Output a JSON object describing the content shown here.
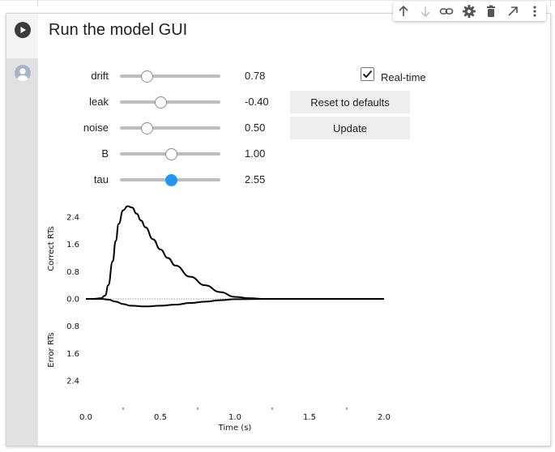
{
  "cell": {
    "title": "Run the model GUI",
    "run_icon": "play-icon",
    "output_icon": "user-avatar-icon"
  },
  "toolbar": {
    "icons": [
      "arrow-up-icon",
      "arrow-down-icon",
      "link-icon",
      "gear-icon",
      "trash-icon",
      "open-external-icon",
      "more-vert-icon"
    ]
  },
  "sliders": [
    {
      "label": "drift",
      "value": "0.78",
      "position": 0.27,
      "active": false
    },
    {
      "label": "leak",
      "value": "-0.40",
      "position": 0.41,
      "active": false
    },
    {
      "label": "noise",
      "value": "0.50",
      "position": 0.27,
      "active": false
    },
    {
      "label": "B",
      "value": "1.00",
      "position": 0.51,
      "active": false
    },
    {
      "label": "tau",
      "value": "2.55",
      "position": 0.51,
      "active": true
    }
  ],
  "controls": {
    "realtime_label": "Real-time",
    "realtime_checked": true,
    "reset_label": "Reset to defaults",
    "update_label": "Update"
  },
  "accent_color": "#2196f3",
  "chart_data": {
    "type": "line",
    "xlabel": "Time (s)",
    "ylabel_top": "Correct RTs",
    "ylabel_bottom": "Error RTs",
    "xlim": [
      0.0,
      2.0
    ],
    "ylim_top": [
      0,
      2.7
    ],
    "ylim_bottom": [
      0,
      2.7
    ],
    "x_ticks": [
      "0.0",
      "0.5",
      "1.0",
      "1.5",
      "2.0"
    ],
    "y_ticks_top": [
      "2.4",
      "1.6",
      "0.8",
      "0.0"
    ],
    "y_ticks_bottom": [
      "0.8",
      "1.6",
      "2.4"
    ],
    "series": [
      {
        "x": [
          0.0,
          0.05,
          0.1,
          0.13,
          0.15,
          0.18,
          0.2,
          0.22,
          0.25,
          0.28,
          0.31,
          0.34,
          0.37,
          0.4,
          0.45,
          0.5,
          0.55,
          0.6,
          0.7,
          0.8,
          0.9,
          1.0,
          1.1,
          1.2,
          1.5,
          2.0
        ],
        "y": [
          0.0,
          0.0,
          0.02,
          0.1,
          0.4,
          1.1,
          1.7,
          2.2,
          2.6,
          2.72,
          2.68,
          2.5,
          2.3,
          2.1,
          1.75,
          1.45,
          1.2,
          0.98,
          0.65,
          0.4,
          0.2,
          0.06,
          0.02,
          0.0,
          0.0,
          0.0
        ]
      },
      {
        "x": [
          0.0,
          0.1,
          0.15,
          0.2,
          0.25,
          0.3,
          0.4,
          0.5,
          0.6,
          0.7,
          0.8,
          0.9,
          1.0,
          1.2,
          1.5,
          2.0
        ],
        "y": [
          0.0,
          0.0,
          0.02,
          0.08,
          0.15,
          0.2,
          0.22,
          0.2,
          0.17,
          0.12,
          0.08,
          0.04,
          0.01,
          0.0,
          0.0,
          0.0
        ]
      }
    ]
  }
}
